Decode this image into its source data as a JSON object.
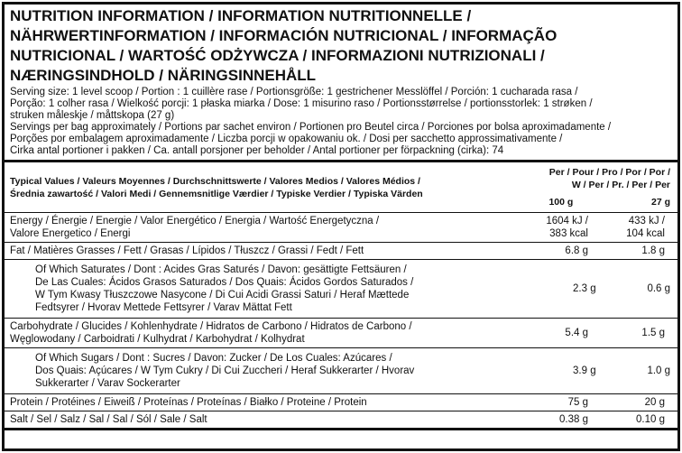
{
  "header": {
    "title_lines": [
      "NUTRITION INFORMATION / INFORMATION NUTRITIONNELLE /",
      "NÄHRWERTINFORMATION / INFORMACIÓN NUTRICIONAL / INFORMAÇÃO",
      "NUTRICIONAL / WARTOŚĆ ODŻYWCZA / INFORMAZIONI NUTRIZIONALI /",
      "NÆRINGSINDHOLD / NÄRINGSINNEHÅLL"
    ]
  },
  "serving": {
    "lines": [
      "Serving size: 1 level scoop / Portion : 1 cuillère rase / Portionsgröße: 1 gestrichener Messlöffel / Porción: 1 cucharada rasa /",
      "Porção: 1 colher rasa / Wielkość porcji: 1 płaska miarka / Dose: 1 misurino raso / Portionsstørrelse / portionsstorlek: 1 strøken /",
      "struken måleskje / måttskopa (27 g)",
      "Servings per bag approximately / Portions par sachet environ / Portionen pro Beutel circa / Porciones por bolsa aproximadamente /",
      "Porções por embalagem aproximadamente / Liczba porcji w opakowaniu ok. / Dosi per sacchetto approssimativamente /",
      "Cirka antal portioner i pakken / Ca. antall porsjoner per beholder / Antal portioner per förpackning (cirka): 74"
    ]
  },
  "table": {
    "head": {
      "label_lines": [
        "Typical Values / Valeurs Moyennes / Durchschnittswerte / Valores Medios / Valores Médios /",
        "Średnia zawartość / Valori Medi / Gennemsnitlige Værdier / Typiske Verdier / Typiska Värden"
      ],
      "per_lines": [
        "Per / Pour / Pro / Por / Por /",
        "W / Per / Pr. / Per / Per"
      ],
      "col1": "100 g",
      "col2": "27 g"
    },
    "rows": [
      {
        "label_lines": [
          "Energy / Énergie / Energie / Valor Energético / Energia / Wartość Energetyczna /",
          "Valore Energetico / Energi"
        ],
        "col1": [
          "1604 kJ /",
          "383 kcal"
        ],
        "col2": [
          "433 kJ /",
          "104 kcal"
        ]
      },
      {
        "label_lines": [
          "Fat / Matières Grasses / Fett / Grasas / Lípidos / Tłuszcz / Grassi / Fedt / Fett"
        ],
        "col1": [
          "6.8 g"
        ],
        "col2": [
          "1.8 g"
        ]
      },
      {
        "label_lines": [
          "Of Which Saturates / Dont : Acides Gras Saturés / Davon: gesättigte Fettsäuren /",
          "De Las Cuales: Ácidos Grasos Saturados / Dos Quais: Ácidos Gordos Saturados /",
          "W Tym Kwasy Tłuszczowe Nasycone / Di Cui Acidi Grassi Saturi / Heraf Mættede",
          "Fedtsyrer / Hvorav Mettede Fettsyrer / Varav Mättat Fett"
        ],
        "col1": [
          "2.3 g"
        ],
        "col2": [
          "0.6 g"
        ]
      },
      {
        "label_lines": [
          "Carbohydrate / Glucides / Kohlenhydrate / Hidratos de Carbono / Hidratos de Carbono /",
          "Węglowodany / Carboidrati / Kulhydrat / Karbohydrat / Kolhydrat"
        ],
        "col1": [
          "5.4 g"
        ],
        "col2": [
          "1.5 g"
        ]
      },
      {
        "label_lines": [
          "Of Which Sugars / Dont : Sucres / Davon: Zucker / De Los Cuales: Azúcares /",
          "Dos Quais: Açúcares / W Tym Cukry / Di Cui Zuccheri / Heraf Sukkerarter / Hvorav",
          "Sukkerarter / Varav Sockerarter"
        ],
        "col1": [
          "3.9 g"
        ],
        "col2": [
          "1.0 g"
        ]
      },
      {
        "label_lines": [
          "Protein / Protéines / Eiweiß / Proteínas / Proteínas / Białko / Proteine / Protein"
        ],
        "col1": [
          "75 g"
        ],
        "col2": [
          "20 g"
        ]
      },
      {
        "label_lines": [
          "Salt / Sel / Salz / Sal / Sal / Sól / Sale / Salt"
        ],
        "col1": [
          "0.38 g"
        ],
        "col2": [
          "0.10 g"
        ]
      }
    ]
  }
}
